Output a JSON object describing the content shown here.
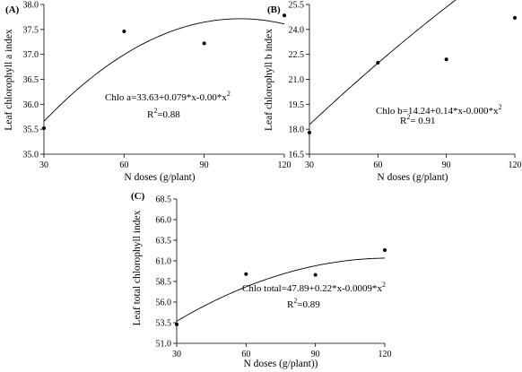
{
  "chart_data": [
    {
      "type": "scatter",
      "panel_label": "(A)",
      "xlabel": "N doses (g/plant)",
      "ylabel": "Leaf chlorophyll a index",
      "xlim": [
        30,
        120
      ],
      "ylim": [
        35.0,
        38.0
      ],
      "xticks": [
        "30",
        "60",
        "90",
        "120"
      ],
      "yticks": [
        "35.0",
        "35.5",
        "36.0",
        "36.5",
        "37.0",
        "37.5",
        "38.0"
      ],
      "points": [
        {
          "x": 30,
          "y": 35.52
        },
        {
          "x": 60,
          "y": 37.46
        },
        {
          "x": 90,
          "y": 37.22
        },
        {
          "x": 120,
          "y": 37.78
        }
      ],
      "fit": {
        "a": 33.63,
        "b": 0.079,
        "c": -0.000382
      },
      "equation": "Chlo a=33.63+0.079*x-0.00*x",
      "equation_sup": "2",
      "r2_prefix": "R",
      "r2_sup": "2",
      "r2_value": "=0.88"
    },
    {
      "type": "scatter",
      "panel_label": "(B)",
      "xlabel": "N doses (g/plant)",
      "ylabel": "Leaf chlorophyll b index",
      "xlim": [
        30,
        120
      ],
      "ylim": [
        16.5,
        25.5
      ],
      "xticks": [
        "30",
        "60",
        "90",
        "120"
      ],
      "yticks": [
        "16.5",
        "18.0",
        "19.5",
        "21.0",
        "22.5",
        "24.0",
        "25.5"
      ],
      "points": [
        {
          "x": 30,
          "y": 17.8
        },
        {
          "x": 60,
          "y": 22.0
        },
        {
          "x": 90,
          "y": 22.2
        },
        {
          "x": 120,
          "y": 24.7
        }
      ],
      "fit": {
        "a": 14.24,
        "b": 0.14,
        "c": -0.000185
      },
      "equation": "Chlo b=14.24+0.14*x-0.000*x",
      "equation_sup": "2",
      "r2_prefix": "R",
      "r2_sup": "2",
      "r2_value": "= 0.91"
    },
    {
      "type": "scatter",
      "panel_label": "(C)",
      "xlabel": "N doses  (g/plant))",
      "ylabel": "Leaf total chlorophyll  index",
      "xlim": [
        30,
        120
      ],
      "ylim": [
        51.0,
        68.5
      ],
      "xticks": [
        "30",
        "60",
        "90",
        "120"
      ],
      "yticks": [
        "51.0",
        "53.5",
        "56.0",
        "58.5",
        "61.0",
        "63.5",
        "66.0",
        "68.5"
      ],
      "points": [
        {
          "x": 30,
          "y": 53.3
        },
        {
          "x": 60,
          "y": 59.4
        },
        {
          "x": 90,
          "y": 59.3
        },
        {
          "x": 120,
          "y": 62.3
        }
      ],
      "fit": {
        "a": 47.89,
        "b": 0.22,
        "c": -0.0009
      },
      "equation": "Chlo total=47.89+0.22*x-0.0009*x",
      "equation_sup": "2",
      "r2_prefix": "R",
      "r2_sup": "2",
      "r2_value": "=0.89"
    }
  ]
}
